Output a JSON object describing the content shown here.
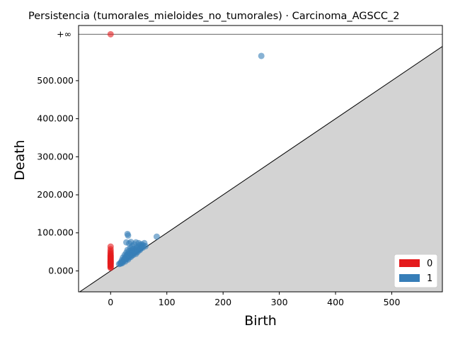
{
  "chart_data": {
    "type": "scatter",
    "title": "Persistencia (tumorales_mieloides_no_tumorales) · Carcinoma_AGSCC_2",
    "xlabel": "Birth",
    "ylabel": "Death",
    "xlim": [
      -57,
      590
    ],
    "ylim": [
      -55,
      645
    ],
    "x_ticks": [
      0,
      100,
      200,
      300,
      400,
      500
    ],
    "x_tick_labels": [
      "0",
      "100",
      "200",
      "300",
      "400",
      "500"
    ],
    "y_ticks": [
      0,
      100,
      200,
      300,
      400,
      500
    ],
    "y_tick_labels": [
      "0.000",
      "100.000",
      "200.000",
      "300.000",
      "400.000",
      "500.000"
    ],
    "infinity_label": "+∞",
    "infinity_value": 622,
    "legend_position": "lower-right",
    "series": [
      {
        "name": "0",
        "color": "#e41a1c",
        "points": [
          [
            0,
            622
          ],
          [
            0,
            64
          ],
          [
            0,
            57
          ],
          [
            0,
            52
          ],
          [
            0,
            48
          ],
          [
            0,
            45
          ],
          [
            0,
            42
          ],
          [
            0,
            40
          ],
          [
            0,
            38
          ],
          [
            0,
            36
          ],
          [
            0,
            34
          ],
          [
            0,
            32
          ],
          [
            0,
            30
          ],
          [
            0,
            29
          ],
          [
            0,
            27
          ],
          [
            0,
            25
          ],
          [
            0,
            24
          ],
          [
            0,
            22
          ],
          [
            0,
            21
          ],
          [
            0,
            19
          ],
          [
            0,
            18
          ],
          [
            0,
            16
          ],
          [
            0,
            14
          ],
          [
            0,
            12
          ],
          [
            0,
            10
          ],
          [
            0,
            8
          ]
        ]
      },
      {
        "name": "1",
        "color": "#377eb8",
        "points": [
          [
            268,
            565
          ],
          [
            82,
            90
          ],
          [
            30,
            97
          ],
          [
            31,
            93
          ],
          [
            28,
            75
          ],
          [
            33,
            72
          ],
          [
            36,
            76
          ],
          [
            45,
            75
          ],
          [
            50,
            73
          ],
          [
            55,
            70
          ],
          [
            60,
            73
          ],
          [
            58,
            67
          ],
          [
            52,
            68
          ],
          [
            42,
            70
          ],
          [
            38,
            65
          ],
          [
            48,
            63
          ],
          [
            55,
            62
          ],
          [
            62,
            65
          ],
          [
            35,
            60
          ],
          [
            40,
            58
          ],
          [
            45,
            57
          ],
          [
            50,
            56
          ],
          [
            30,
            55
          ],
          [
            33,
            52
          ],
          [
            38,
            50
          ],
          [
            42,
            49
          ],
          [
            47,
            52
          ],
          [
            52,
            55
          ],
          [
            28,
            48
          ],
          [
            31,
            45
          ],
          [
            35,
            43
          ],
          [
            40,
            42
          ],
          [
            45,
            45
          ],
          [
            25,
            42
          ],
          [
            28,
            40
          ],
          [
            32,
            38
          ],
          [
            36,
            37
          ],
          [
            22,
            35
          ],
          [
            25,
            33
          ],
          [
            28,
            31
          ],
          [
            31,
            30
          ],
          [
            20,
            28
          ],
          [
            23,
            26
          ],
          [
            26,
            25
          ],
          [
            18,
            22
          ],
          [
            21,
            21
          ],
          [
            17,
            19
          ],
          [
            15,
            18
          ],
          [
            24,
            29
          ],
          [
            33,
            35
          ],
          [
            38,
            41
          ],
          [
            43,
            47
          ],
          [
            48,
            50
          ],
          [
            53,
            58
          ],
          [
            57,
            61
          ],
          [
            27,
            36
          ],
          [
            35,
            47
          ],
          [
            44,
            54
          ],
          [
            50,
            60
          ],
          [
            30,
            42
          ],
          [
            41,
            53
          ],
          [
            46,
            60
          ],
          [
            37,
            55
          ],
          [
            55,
            66
          ],
          [
            29,
            34
          ],
          [
            34,
            40
          ],
          [
            39,
            46
          ],
          [
            20,
            24
          ],
          [
            19,
            20
          ],
          [
            26,
            30
          ]
        ]
      }
    ]
  }
}
